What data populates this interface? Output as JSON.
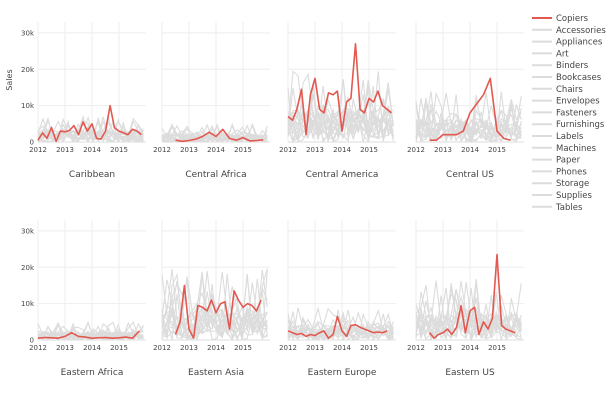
{
  "chart_data": {
    "type": "line",
    "ylabel": "Sales",
    "ylim": [
      0,
      33000
    ],
    "y_ticks": [
      {
        "value": 0,
        "label": "0"
      },
      {
        "value": 10000,
        "label": "10k"
      },
      {
        "value": 20000,
        "label": "20k"
      },
      {
        "value": 30000,
        "label": "30k"
      }
    ],
    "x_range": [
      2012,
      2016
    ],
    "x_ticks": [
      {
        "value": 2012,
        "label": "2012"
      },
      {
        "value": 2013,
        "label": "2013"
      },
      {
        "value": 2014,
        "label": "2014"
      },
      {
        "value": 2015,
        "label": "2015"
      }
    ],
    "highlight_series": "Copiers",
    "colors": {
      "highlight": "#e3584f",
      "other": "#dcdcdc"
    },
    "legend": [
      "Copiers",
      "Accessories",
      "Appliances",
      "Art",
      "Binders",
      "Bookcases",
      "Chairs",
      "Envelopes",
      "Fasteners",
      "Furnishings",
      "Labels",
      "Machines",
      "Paper",
      "Phones",
      "Storage",
      "Supplies",
      "Tables"
    ],
    "panels": [
      {
        "region": "Caribbean",
        "copiers": {
          "x": [
            2012,
            2012.17,
            2012.33,
            2012.5,
            2012.67,
            2012.83,
            2013,
            2013.17,
            2013.33,
            2013.5,
            2013.67,
            2013.83,
            2014,
            2014.17,
            2014.33,
            2014.5,
            2014.67,
            2014.83,
            2015,
            2015.17,
            2015.33,
            2015.5,
            2015.67,
            2015.83
          ],
          "y": [
            500,
            2500,
            1000,
            4000,
            200,
            3000,
            2800,
            3200,
            4500,
            2000,
            5500,
            3000,
            5000,
            1000,
            800,
            3000,
            10000,
            4000,
            3000,
            2500,
            2000,
            3500,
            3000,
            2000
          ]
        },
        "others_max": 7000
      },
      {
        "region": "Central Africa",
        "copiers": {
          "x": [
            2012.5,
            2012.75,
            2013,
            2013.25,
            2013.5,
            2013.75,
            2014,
            2014.25,
            2014.5,
            2014.75,
            2015,
            2015.25,
            2015.5,
            2015.75
          ],
          "y": [
            500,
            200,
            400,
            800,
            1500,
            2700,
            1500,
            3500,
            1000,
            500,
            1200,
            300,
            400,
            600
          ]
        },
        "others_max": 5000
      },
      {
        "region": "Central America",
        "copiers": {
          "x": [
            2012,
            2012.17,
            2012.33,
            2012.5,
            2012.67,
            2012.83,
            2013,
            2013.17,
            2013.33,
            2013.5,
            2013.67,
            2013.83,
            2014,
            2014.17,
            2014.33,
            2014.5,
            2014.67,
            2014.83,
            2015,
            2015.17,
            2015.33,
            2015.5,
            2015.67,
            2015.83
          ],
          "y": [
            7000,
            6000,
            9000,
            14500,
            2000,
            13000,
            17500,
            9000,
            8000,
            13500,
            13000,
            14000,
            3000,
            11000,
            12000,
            27000,
            9000,
            8000,
            12000,
            11000,
            14000,
            10000,
            9000,
            8000
          ]
        },
        "others_max": 20000
      },
      {
        "region": "Central US",
        "copiers": {
          "x": [
            2012.5,
            2012.75,
            2013,
            2013.25,
            2013.5,
            2013.75,
            2014,
            2014.5,
            2014.75,
            2015,
            2015.25,
            2015.5
          ],
          "y": [
            500,
            500,
            2000,
            2000,
            2000,
            3000,
            8000,
            13000,
            17500,
            3000,
            1000,
            500
          ]
        },
        "others_max": 14000
      },
      {
        "region": "Eastern Africa",
        "copiers": {
          "x": [
            2012,
            2012.25,
            2012.5,
            2012.75,
            2013,
            2013.25,
            2013.5,
            2013.75,
            2014,
            2014.25,
            2014.5,
            2014.75,
            2015,
            2015.25,
            2015.5,
            2015.75
          ],
          "y": [
            500,
            700,
            600,
            500,
            1000,
            2000,
            1000,
            800,
            500,
            600,
            700,
            500,
            600,
            800,
            500,
            2500
          ]
        },
        "others_max": 5000
      },
      {
        "region": "Eastern Asia",
        "copiers": {
          "x": [
            2012.5,
            2012.67,
            2012.83,
            2013,
            2013.17,
            2013.33,
            2013.5,
            2013.67,
            2013.83,
            2014,
            2014.17,
            2014.33,
            2014.5,
            2014.67,
            2014.83,
            2015,
            2015.17,
            2015.33,
            2015.5,
            2015.67
          ],
          "y": [
            1500,
            5000,
            15000,
            3000,
            500,
            9500,
            9000,
            8000,
            11000,
            7500,
            10000,
            10500,
            3000,
            13500,
            11000,
            9000,
            10000,
            9500,
            8000,
            11000
          ]
        },
        "others_max": 20000
      },
      {
        "region": "Eastern Europe",
        "copiers": {
          "x": [
            2012,
            2012.17,
            2012.33,
            2012.5,
            2012.67,
            2012.83,
            2013,
            2013.17,
            2013.33,
            2013.5,
            2013.67,
            2013.83,
            2014,
            2014.17,
            2014.33,
            2014.5,
            2014.67,
            2014.83,
            2015,
            2015.17,
            2015.33,
            2015.5,
            2015.67
          ],
          "y": [
            2500,
            2000,
            1500,
            1800,
            1000,
            1500,
            1200,
            2000,
            2500,
            500,
            1500,
            6500,
            2500,
            1000,
            4000,
            4200,
            3500,
            3000,
            2500,
            2000,
            2200,
            2000,
            2500
          ]
        },
        "others_max": 9000
      },
      {
        "region": "Eastern US",
        "copiers": {
          "x": [
            2012.5,
            2012.67,
            2012.83,
            2013,
            2013.17,
            2013.33,
            2013.5,
            2013.67,
            2013.83,
            2014,
            2014.17,
            2014.33,
            2014.5,
            2014.67,
            2014.83,
            2015,
            2015.17,
            2015.33,
            2015.5,
            2015.67
          ],
          "y": [
            2000,
            500,
            1500,
            2000,
            3000,
            1500,
            3500,
            9500,
            2000,
            8000,
            9000,
            1500,
            5000,
            3000,
            6000,
            23500,
            4000,
            3000,
            2500,
            2000
          ]
        },
        "others_max": 17000
      }
    ]
  }
}
